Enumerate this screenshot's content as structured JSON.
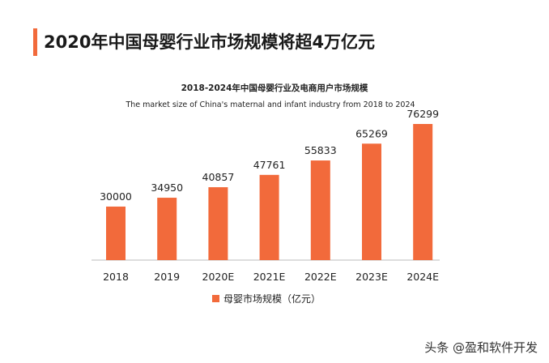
{
  "header": {
    "title": "2020年中国母婴行业市场规模将超4万亿元"
  },
  "chart_data": {
    "type": "bar",
    "title": "2018-2024年中国母婴行业及电商用户市场规模",
    "subtitle": "The market size of China's maternal and infant industry from 2018 to 2024",
    "categories": [
      "2018",
      "2019",
      "2020E",
      "2021E",
      "2022E",
      "2023E",
      "2024E"
    ],
    "series": [
      {
        "name": "母婴市场规模（亿元）",
        "values": [
          30000,
          34950,
          40857,
          47761,
          55833,
          65269,
          76299
        ]
      }
    ],
    "ylim": [
      0,
      76299
    ],
    "grid": false,
    "legend": "bottom",
    "color": "#f26a3b"
  },
  "watermark": "头条 @盈和软件开发"
}
